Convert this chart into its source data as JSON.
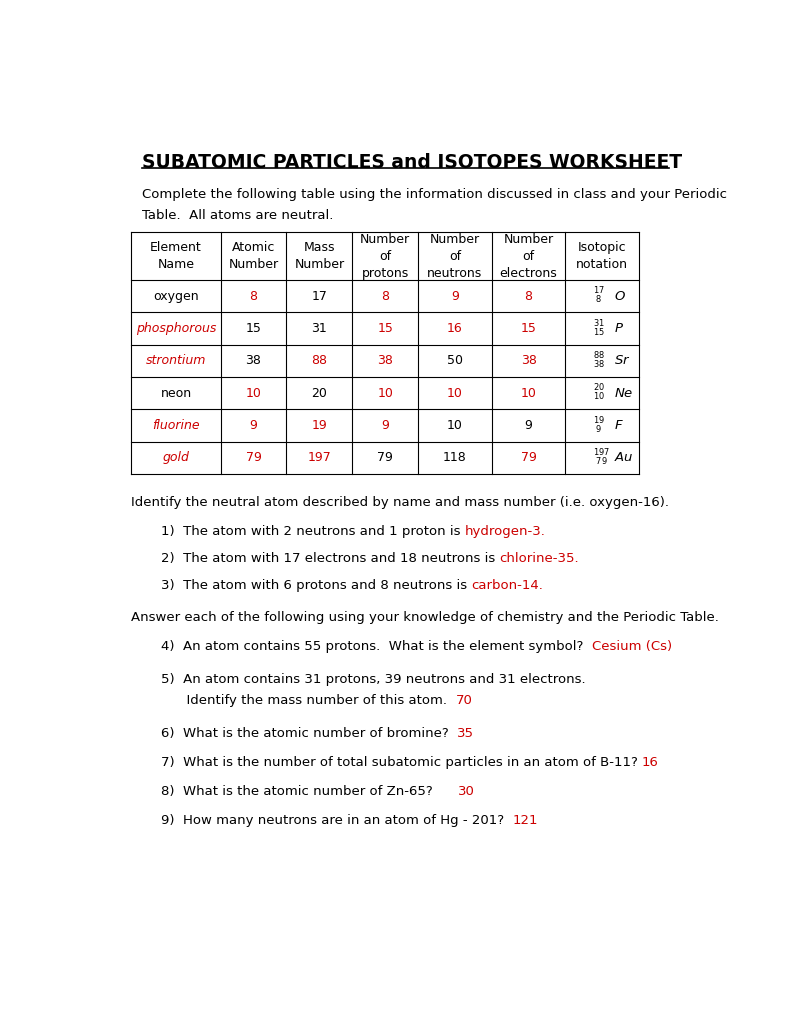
{
  "title": "SUBATOMIC PARTICLES and ISOTOPES WORKSHEET",
  "bg_color": "#ffffff",
  "text_color": "#000000",
  "red_color": "#cc0000",
  "intro_text1": "Complete the following table using the information discussed in class and your Periodic",
  "intro_text2": "Table.  All atoms are neutral.",
  "table_headers": [
    "Element\nName",
    "Atomic\nNumber",
    "Mass\nNumber",
    "Number\nof\nprotons",
    "Number\nof\nneutrons",
    "Number\nof\nelectrons",
    "Isotopic\nnotation"
  ],
  "col_widths": [
    1.15,
    0.85,
    0.85,
    0.85,
    0.95,
    0.95,
    0.95
  ],
  "table_rows": [
    {
      "cells": [
        "oxygen",
        "8",
        "17",
        "8",
        "9",
        "8",
        "iso"
      ],
      "colors": [
        "black",
        "red",
        "black",
        "red",
        "red",
        "red",
        "black"
      ]
    },
    {
      "cells": [
        "phosphorous",
        "15",
        "31",
        "15",
        "16",
        "15",
        "iso"
      ],
      "colors": [
        "red",
        "black",
        "black",
        "red",
        "red",
        "red",
        "black"
      ]
    },
    {
      "cells": [
        "strontium",
        "38",
        "88",
        "38",
        "50",
        "38",
        "iso"
      ],
      "colors": [
        "red",
        "black",
        "red",
        "red",
        "black",
        "red",
        "black"
      ]
    },
    {
      "cells": [
        "neon",
        "10",
        "20",
        "10",
        "10",
        "10",
        "iso"
      ],
      "colors": [
        "black",
        "red",
        "black",
        "red",
        "red",
        "red",
        "black"
      ]
    },
    {
      "cells": [
        "fluorine",
        "9",
        "19",
        "9",
        "10",
        "9",
        "iso"
      ],
      "colors": [
        "red",
        "red",
        "red",
        "red",
        "black",
        "black",
        "black"
      ]
    },
    {
      "cells": [
        "gold",
        "79",
        "197",
        "79",
        "118",
        "79",
        "iso"
      ],
      "colors": [
        "red",
        "red",
        "red",
        "black",
        "black",
        "red",
        "black"
      ]
    }
  ],
  "section2_intro": "Identify the neutral atom described by name and mass number (i.e. oxygen-16).",
  "q1_black": "1)  The atom with 2 neutrons and 1 proton is ",
  "q1_red": "hydrogen-3.",
  "q2_black": "2)  The atom with 17 electrons and 18 neutrons is ",
  "q2_red": "chlorine-35.",
  "q3_black": "3)  The atom with 6 protons and 8 neutrons is ",
  "q3_red": "carbon-14.",
  "section3_intro": "Answer each of the following using your knowledge of chemistry and the Periodic Table.",
  "q4_black": "4)  An atom contains 55 protons.  What is the element symbol?  ",
  "q4_red": "Cesium (Cs)",
  "q5_line1": "5)  An atom contains 31 protons, 39 neutrons and 31 electrons.",
  "q5_line2_black": "      Identify the mass number of this atom.  ",
  "q5_red": "70",
  "q6_black": "6)  What is the atomic number of bromine?  ",
  "q6_red": "35",
  "q7_black": "7)  What is the number of total subatomic particles in an atom of B-11? ",
  "q7_red": "16",
  "q8_black": "8)  What is the atomic number of Zn-65?      ",
  "q8_red": "30",
  "q9_black": "9)  How many neutrons are in an atom of Hg - 201?  ",
  "q9_red": "121"
}
